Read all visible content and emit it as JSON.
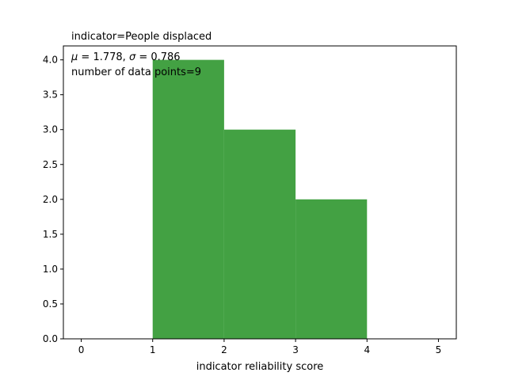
{
  "chart_data": {
    "type": "bar",
    "title": "indicator=People displaced",
    "annotation_line1_mu": "1.778",
    "annotation_line1_sigma": "0.786",
    "annotation_line2": "number of data points=9",
    "xlabel": "indicator reliability score",
    "ylabel": "",
    "xlim": [
      -0.25,
      5.25
    ],
    "ylim": [
      0,
      4.2
    ],
    "xticks": [
      "0",
      "1",
      "2",
      "3",
      "4",
      "5"
    ],
    "yticks": [
      "0.0",
      "0.5",
      "1.0",
      "1.5",
      "2.0",
      "2.5",
      "3.0",
      "3.5",
      "4.0"
    ],
    "bins": [
      {
        "x0": 1,
        "x1": 2,
        "value": 4
      },
      {
        "x0": 2,
        "x1": 3,
        "value": 3
      },
      {
        "x0": 3,
        "x1": 4,
        "value": 2
      }
    ],
    "bar_color": "#43a143",
    "grid": false
  }
}
